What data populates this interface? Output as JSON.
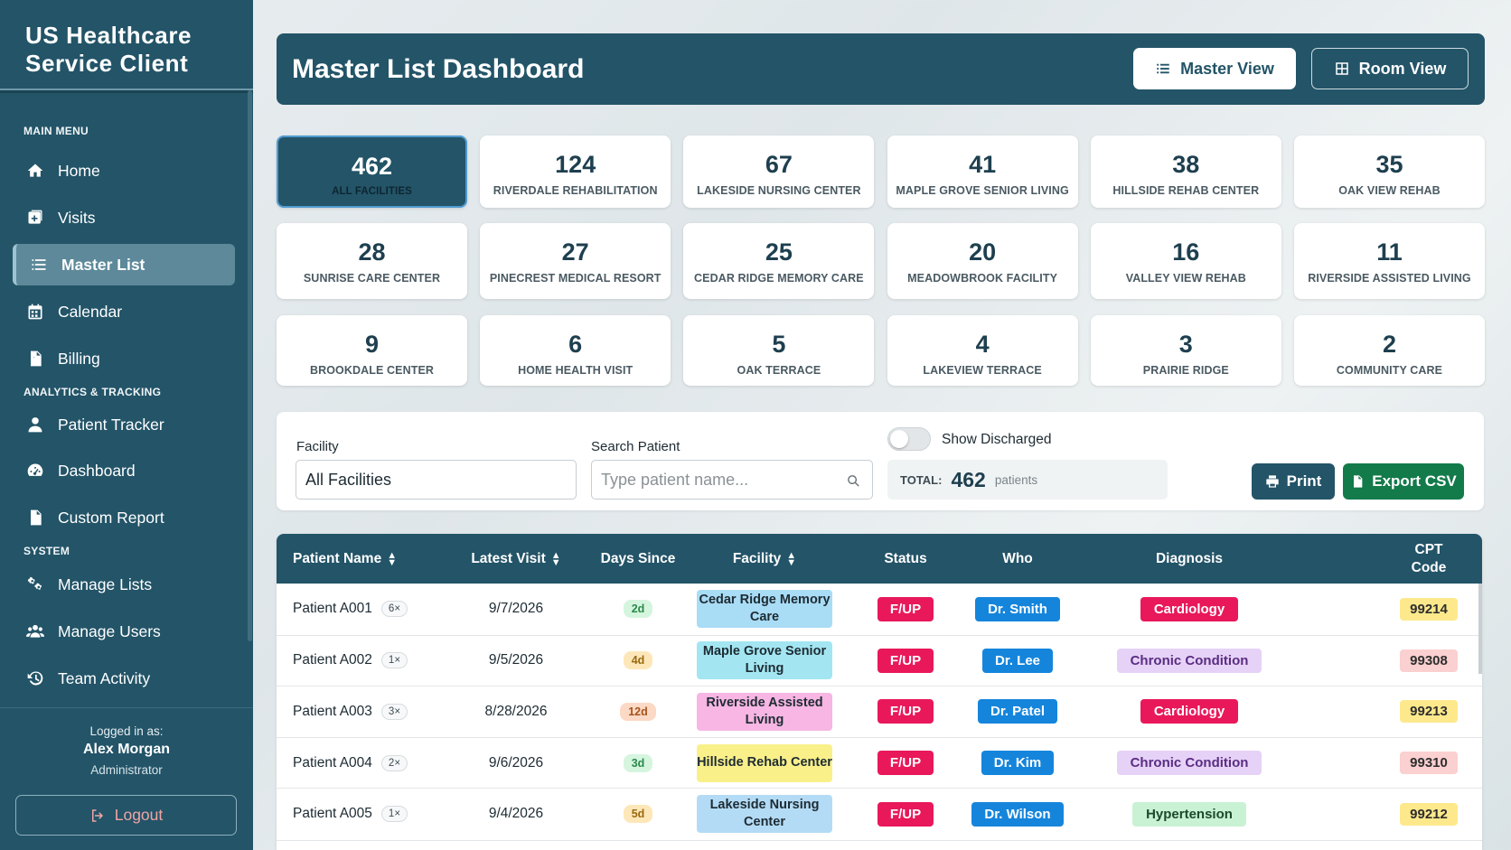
{
  "app": {
    "title": "US Healthcare Service Client"
  },
  "sidebar": {
    "sections": [
      {
        "label": "MAIN MENU"
      },
      {
        "label": "ANALYTICS & TRACKING"
      },
      {
        "label": "SYSTEM"
      }
    ],
    "items": [
      {
        "label": "Home",
        "icon": "home-icon"
      },
      {
        "label": "Visits",
        "icon": "visits-icon"
      },
      {
        "label": "Master List",
        "icon": "list-icon",
        "active": true
      },
      {
        "label": "Calendar",
        "icon": "calendar-icon"
      },
      {
        "label": "Billing",
        "icon": "billing-icon"
      },
      {
        "label": "Patient Tracker",
        "icon": "user-icon"
      },
      {
        "label": "Dashboard",
        "icon": "gauge-icon"
      },
      {
        "label": "Custom Report",
        "icon": "document-icon"
      },
      {
        "label": "Manage Lists",
        "icon": "gears-icon"
      },
      {
        "label": "Manage Users",
        "icon": "users-icon"
      },
      {
        "label": "Team Activity",
        "icon": "history-icon"
      }
    ],
    "user": {
      "logged_label": "Logged in as:",
      "name": "Alex Morgan",
      "role": "Administrator"
    },
    "logout_label": "Logout"
  },
  "header": {
    "title": "Master List Dashboard",
    "master_view_label": "Master View",
    "room_view_label": "Room View"
  },
  "facility_cards": [
    {
      "count": "462",
      "name": "ALL FACILITIES",
      "active": true
    },
    {
      "count": "124",
      "name": "RIVERDALE REHABILITATION"
    },
    {
      "count": "67",
      "name": "LAKESIDE NURSING CENTER"
    },
    {
      "count": "41",
      "name": "MAPLE GROVE SENIOR LIVING"
    },
    {
      "count": "38",
      "name": "HILLSIDE REHAB CENTER"
    },
    {
      "count": "35",
      "name": "OAK VIEW REHAB"
    },
    {
      "count": "28",
      "name": "SUNRISE CARE CENTER"
    },
    {
      "count": "27",
      "name": "PINECREST MEDICAL RESORT"
    },
    {
      "count": "25",
      "name": "CEDAR RIDGE MEMORY CARE"
    },
    {
      "count": "20",
      "name": "MEADOWBROOK FACILITY"
    },
    {
      "count": "16",
      "name": "VALLEY VIEW REHAB"
    },
    {
      "count": "11",
      "name": "RIVERSIDE ASSISTED LIVING"
    },
    {
      "count": "9",
      "name": "BROOKDALE CENTER"
    },
    {
      "count": "6",
      "name": "HOME HEALTH VISIT"
    },
    {
      "count": "5",
      "name": "OAK TERRACE"
    },
    {
      "count": "4",
      "name": "LAKEVIEW TERRACE"
    },
    {
      "count": "3",
      "name": "PRAIRIE RIDGE"
    },
    {
      "count": "2",
      "name": "COMMUNITY CARE"
    }
  ],
  "filters": {
    "facility_label": "Facility",
    "facility_value": "All Facilities",
    "search_label": "Search Patient",
    "search_placeholder": "Type patient name...",
    "show_discharged_label": "Show Discharged",
    "show_discharged_on": false,
    "total_label": "TOTAL:",
    "total_value": "462",
    "total_unit": "patients",
    "print_label": "Print",
    "export_label": "Export CSV"
  },
  "table": {
    "columns": [
      "Patient Name",
      "Latest Visit",
      "Days Since",
      "Facility",
      "Status",
      "Who",
      "Diagnosis",
      "CPT Code"
    ],
    "rows": [
      {
        "name": "Patient A001",
        "visits": "6×",
        "latest": "9/7/2026",
        "days": "2d",
        "facility": "Cedar Ridge Memory Care",
        "status": "F/UP",
        "who": "Dr. Smith",
        "diagnosis": "Cardiology",
        "cpt": "99214"
      },
      {
        "name": "Patient A002",
        "visits": "1×",
        "latest": "9/5/2026",
        "days": "4d",
        "facility": "Maple Grove Senior Living",
        "status": "F/UP",
        "who": "Dr. Lee",
        "diagnosis": "Chronic Condition",
        "cpt": "99308"
      },
      {
        "name": "Patient A003",
        "visits": "3×",
        "latest": "8/28/2026",
        "days": "12d",
        "facility": "Riverside Assisted Living",
        "status": "F/UP",
        "who": "Dr. Patel",
        "diagnosis": "Cardiology",
        "cpt": "99213"
      },
      {
        "name": "Patient A004",
        "visits": "2×",
        "latest": "9/6/2026",
        "days": "3d",
        "facility": "Hillside Rehab Center",
        "status": "F/UP",
        "who": "Dr. Kim",
        "diagnosis": "Chronic Condition",
        "cpt": "99310"
      },
      {
        "name": "Patient A005",
        "visits": "1×",
        "latest": "9/4/2026",
        "days": "5d",
        "facility": "Lakeside Nursing Center",
        "status": "F/UP",
        "who": "Dr. Wilson",
        "diagnosis": "Hypertension",
        "cpt": "99212"
      }
    ]
  },
  "colors": {
    "primary": "#235468",
    "status": "#e8185a",
    "who": "#1585dc",
    "export": "#137a4a",
    "days_recent": "#d6f5df",
    "days_mid": "#fde7b9",
    "days_old": "#fcd9c5",
    "facility_cedar": "#a9dcf5",
    "facility_maple": "#a3e6f2",
    "facility_riverside": "#f7b6e3",
    "facility_hillside": "#faf08a",
    "facility_lakeside": "#b4dbf5",
    "diag_cardiology": "#e8185a",
    "diag_chronic": "#e6d2f7",
    "diag_hypertension": "#c9f2d4",
    "cpt_yellow": "#fde98c",
    "cpt_red": "#fbd0d0"
  }
}
